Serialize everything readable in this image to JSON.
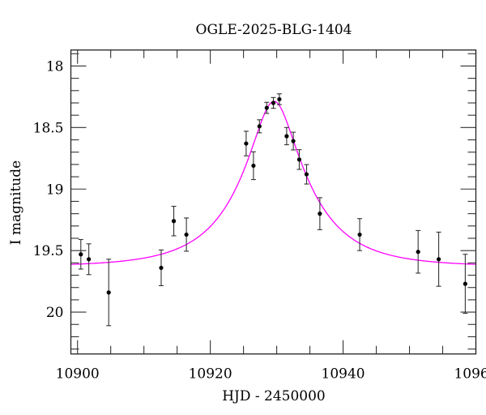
{
  "chart_data": {
    "type": "scatter",
    "title": "OGLE-2025-BLG-1404",
    "xlabel": "HJD - 2450000",
    "ylabel": "I magnitude",
    "xlim": [
      10899,
      10960
    ],
    "ylim": [
      20.34,
      17.87
    ],
    "y_inverted": true,
    "x_ticks": [
      10900,
      10920,
      10940,
      10960
    ],
    "x_tick_labels": [
      "10900",
      "10920",
      "10940",
      "10960"
    ],
    "x_minor_step": 5,
    "y_ticks": [
      18,
      18.5,
      19,
      19.5,
      20
    ],
    "y_tick_labels": [
      "18",
      "18.5",
      "19",
      "19.5",
      "20"
    ],
    "y_minor_step": 0.1,
    "grid": false,
    "colors": {
      "points": "#000000",
      "errorbars": "#333333",
      "model": "#ff00ff"
    },
    "series": [
      {
        "type": "scatter-errorbar",
        "x": [
          10900.5,
          10901.7,
          10904.7,
          10912.6,
          10914.5,
          10916.4,
          10925.4,
          10926.5,
          10927.4,
          10928.5,
          10929.5,
          10930.4,
          10931.5,
          10932.5,
          10933.4,
          10934.5,
          10936.5,
          10942.5,
          10951.3,
          10954.4,
          10958.4
        ],
        "y": [
          19.53,
          19.57,
          19.84,
          19.64,
          19.26,
          19.37,
          18.63,
          18.81,
          18.49,
          18.34,
          18.3,
          18.27,
          18.57,
          18.61,
          18.76,
          18.88,
          19.2,
          19.37,
          19.51,
          19.57,
          19.77
        ],
        "err": [
          0.12,
          0.125,
          0.27,
          0.145,
          0.12,
          0.135,
          0.1,
          0.113,
          0.053,
          0.045,
          0.044,
          0.044,
          0.07,
          0.072,
          0.08,
          0.079,
          0.13,
          0.13,
          0.173,
          0.22,
          0.24
        ]
      },
      {
        "type": "line",
        "model": "point-lens",
        "t0": 10929.6,
        "u0": 0.3,
        "tE": 10.2,
        "baseline": 19.63
      }
    ]
  }
}
